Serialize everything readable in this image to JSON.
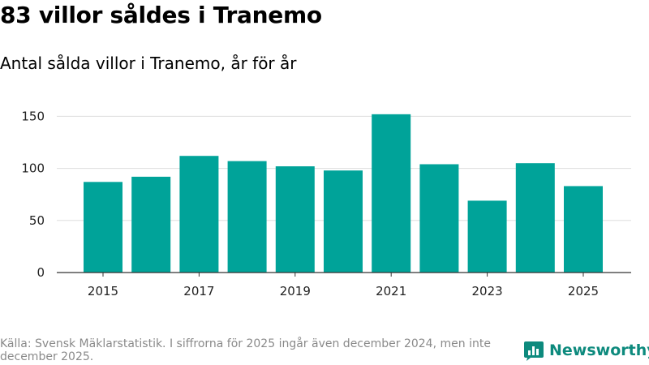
{
  "title": "83 villor såldes i Tranemo",
  "subtitle": "Antal sålda villor i Tranemo, år för år",
  "chart_data": {
    "type": "bar",
    "categories": [
      "2015",
      "2016",
      "2017",
      "2018",
      "2019",
      "2020",
      "2021",
      "2022",
      "2023",
      "2024",
      "2025"
    ],
    "values": [
      87,
      92,
      112,
      107,
      102,
      98,
      152,
      104,
      69,
      105,
      83
    ],
    "x_tick_labels": [
      "2015",
      "2017",
      "2019",
      "2021",
      "2023",
      "2025"
    ],
    "y_ticks": [
      0,
      50,
      100,
      150
    ],
    "ylim": [
      0,
      155
    ],
    "grid": true,
    "bar_color": "#00a399",
    "grid_color": "#dddddd",
    "axis_color": "#333333"
  },
  "footer": {
    "source": "Källa: Svensk Mäklarstatistik. I siffrorna för 2025 ingår även december 2024, men inte december 2025."
  },
  "brand": {
    "name": "Newsworthy",
    "icon": "newsworthy-logo-icon",
    "color": "#0d8a7d"
  }
}
